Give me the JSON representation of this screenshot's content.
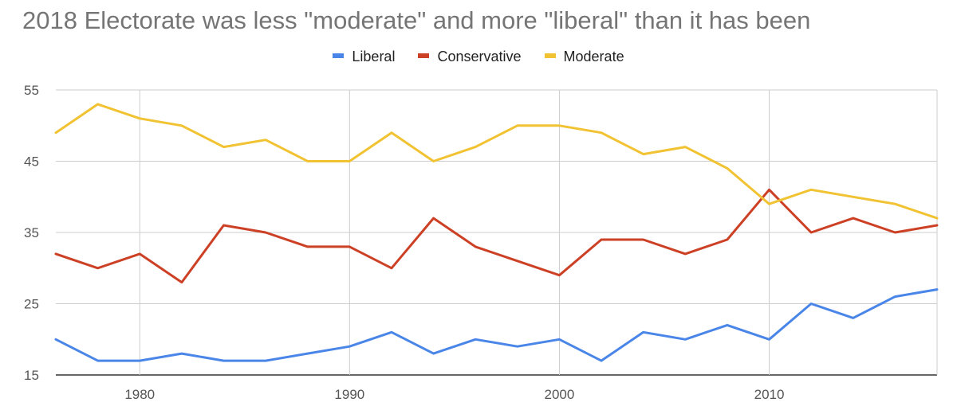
{
  "chart_data": {
    "type": "line",
    "title": "2018 Electorate was less \"moderate\" and more \"liberal\" than it has been",
    "xlabel": "",
    "ylabel": "",
    "xlim": [
      1976,
      2018
    ],
    "ylim": [
      15,
      55
    ],
    "x_ticks": [
      1980,
      1990,
      2000,
      2010
    ],
    "y_ticks": [
      15,
      25,
      35,
      45,
      55
    ],
    "grid": true,
    "legend_position": "top",
    "x": [
      1976,
      1978,
      1980,
      1982,
      1984,
      1986,
      1988,
      1990,
      1992,
      1994,
      1996,
      1998,
      2000,
      2002,
      2004,
      2006,
      2008,
      2010,
      2012,
      2014,
      2016,
      2018
    ],
    "series": [
      {
        "name": "Liberal",
        "color": "#4a86e8",
        "values": [
          20,
          17,
          17,
          18,
          17,
          17,
          18,
          19,
          21,
          18,
          20,
          19,
          20,
          17,
          21,
          20,
          22,
          20,
          25,
          23,
          26,
          27
        ]
      },
      {
        "name": "Conservative",
        "color": "#cc4125",
        "values": [
          32,
          30,
          32,
          28,
          36,
          35,
          33,
          33,
          30,
          37,
          33,
          31,
          29,
          34,
          34,
          32,
          34,
          41,
          35,
          37,
          35,
          36
        ]
      },
      {
        "name": "Moderate",
        "color": "#f1c232",
        "values": [
          49,
          53,
          51,
          50,
          47,
          48,
          45,
          45,
          49,
          45,
          47,
          50,
          50,
          49,
          46,
          47,
          44,
          39,
          41,
          40,
          39,
          37
        ]
      }
    ]
  }
}
